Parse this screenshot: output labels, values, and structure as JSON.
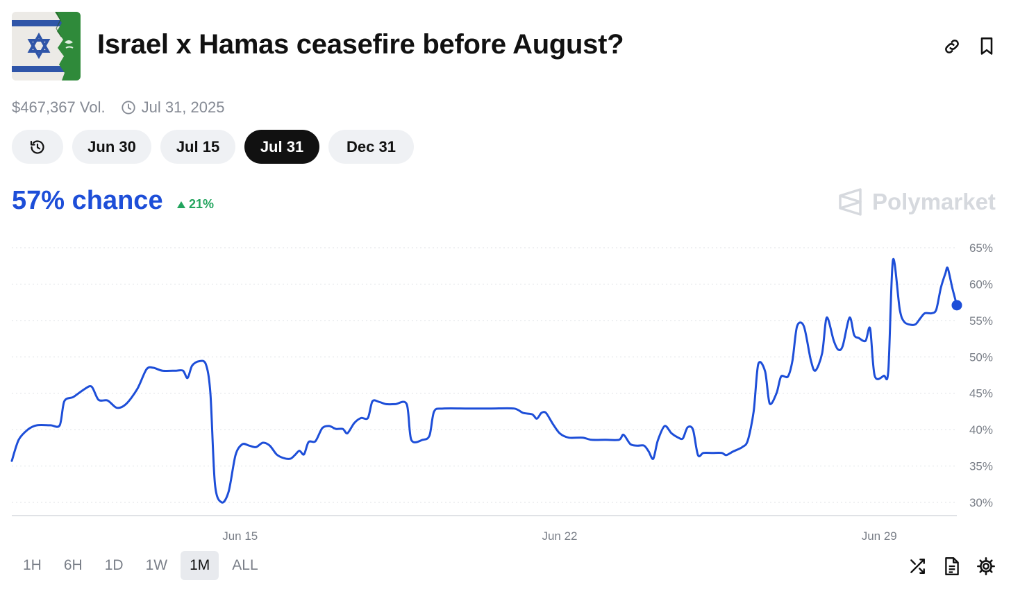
{
  "market": {
    "title": "Israel x Hamas ceasefire before August?",
    "volume": "$467,367 Vol.",
    "end_date": "Jul 31, 2025"
  },
  "header_icons": [
    "link-icon",
    "bookmark-icon"
  ],
  "date_tabs": {
    "history_icon": "history-icon",
    "items": [
      "Jun 30",
      "Jul 15",
      "Jul 31",
      "Dec 31"
    ],
    "active": "Jul 31"
  },
  "probability": {
    "label": "57% chance",
    "change": "21%",
    "change_direction": "up"
  },
  "brand": {
    "name": "Polymarket"
  },
  "colors": {
    "accent": "#1d4ed8",
    "positive": "#22a45d",
    "active_tab": "#111111"
  },
  "time_ranges": {
    "items": [
      "1H",
      "6H",
      "1D",
      "1W",
      "1M",
      "ALL"
    ],
    "active": "1M"
  },
  "footer_icons": [
    "shuffle-icon",
    "document-icon",
    "settings-icon"
  ],
  "chart_data": {
    "type": "line",
    "x_ticks": [
      "Jun 15",
      "Jun 22",
      "Jun 29"
    ],
    "y_ticks": [
      "30%",
      "35%",
      "40%",
      "45%",
      "50%",
      "55%",
      "60%",
      "65%"
    ],
    "ylim": [
      30,
      65
    ],
    "grid": true,
    "x_day_range": [
      10,
      30.7
    ],
    "series": [
      {
        "color": "#1d4ed8",
        "points": [
          [
            10.0,
            35.7
          ],
          [
            10.15,
            38.6
          ],
          [
            10.35,
            40
          ],
          [
            10.55,
            40.6
          ],
          [
            10.85,
            40.6
          ],
          [
            11.05,
            40.6
          ],
          [
            11.15,
            43.9
          ],
          [
            11.35,
            44.5
          ],
          [
            11.6,
            45.6
          ],
          [
            11.75,
            45.9
          ],
          [
            11.9,
            44.1
          ],
          [
            12.1,
            44.0
          ],
          [
            12.3,
            43.0
          ],
          [
            12.5,
            43.5
          ],
          [
            12.75,
            45.6
          ],
          [
            12.95,
            48.3
          ],
          [
            13.1,
            48.5
          ],
          [
            13.3,
            48.1
          ],
          [
            13.6,
            48.1
          ],
          [
            13.75,
            48.1
          ],
          [
            13.85,
            47.1
          ],
          [
            13.95,
            48.8
          ],
          [
            14.1,
            49.4
          ],
          [
            14.25,
            49.0
          ],
          [
            14.35,
            45
          ],
          [
            14.45,
            32.5
          ],
          [
            14.6,
            30.0
          ],
          [
            14.75,
            31.5
          ],
          [
            14.9,
            36.5
          ],
          [
            15.05,
            38.0
          ],
          [
            15.2,
            37.8
          ],
          [
            15.35,
            37.6
          ],
          [
            15.5,
            38.2
          ],
          [
            15.65,
            37.8
          ],
          [
            15.8,
            36.6
          ],
          [
            15.95,
            36.1
          ],
          [
            16.1,
            36.0
          ],
          [
            16.2,
            36.5
          ],
          [
            16.3,
            37.1
          ],
          [
            16.4,
            36.6
          ],
          [
            16.5,
            38.3
          ],
          [
            16.65,
            38.4
          ],
          [
            16.8,
            40.2
          ],
          [
            16.95,
            40.5
          ],
          [
            17.1,
            40.1
          ],
          [
            17.25,
            40.1
          ],
          [
            17.35,
            39.5
          ],
          [
            17.5,
            40.9
          ],
          [
            17.65,
            41.6
          ],
          [
            17.8,
            41.6
          ],
          [
            17.9,
            43.9
          ],
          [
            18.05,
            43.8
          ],
          [
            18.2,
            43.5
          ],
          [
            18.4,
            43.5
          ],
          [
            18.65,
            43.5
          ],
          [
            18.75,
            38.6
          ],
          [
            19.0,
            38.6
          ],
          [
            19.15,
            39.2
          ],
          [
            19.25,
            42.5
          ],
          [
            19.45,
            42.9
          ],
          [
            20.0,
            42.9
          ],
          [
            20.5,
            42.9
          ],
          [
            21.0,
            42.9
          ],
          [
            21.2,
            42.3
          ],
          [
            21.4,
            42.1
          ],
          [
            21.5,
            41.5
          ],
          [
            21.6,
            42.3
          ],
          [
            21.7,
            42.3
          ],
          [
            21.85,
            40.8
          ],
          [
            22.0,
            39.5
          ],
          [
            22.2,
            38.9
          ],
          [
            22.5,
            38.9
          ],
          [
            22.7,
            38.6
          ],
          [
            23.0,
            38.6
          ],
          [
            23.3,
            38.6
          ],
          [
            23.4,
            39.3
          ],
          [
            23.55,
            38.0
          ],
          [
            23.7,
            37.8
          ],
          [
            23.85,
            37.8
          ],
          [
            23.95,
            37.0
          ],
          [
            24.05,
            36.0
          ],
          [
            24.15,
            38.5
          ],
          [
            24.3,
            40.5
          ],
          [
            24.45,
            39.5
          ],
          [
            24.6,
            38.9
          ],
          [
            24.7,
            38.8
          ],
          [
            24.8,
            40.3
          ],
          [
            24.92,
            40.0
          ],
          [
            25.03,
            36.5
          ],
          [
            25.15,
            36.8
          ],
          [
            25.35,
            36.8
          ],
          [
            25.55,
            36.8
          ],
          [
            25.65,
            36.5
          ],
          [
            25.8,
            37.0
          ],
          [
            26.0,
            37.6
          ],
          [
            26.12,
            38.5
          ],
          [
            26.25,
            42.5
          ],
          [
            26.35,
            49.0
          ],
          [
            26.5,
            48.0
          ],
          [
            26.6,
            43.6
          ],
          [
            26.75,
            45.0
          ],
          [
            26.85,
            47.3
          ],
          [
            27.0,
            47.3
          ],
          [
            27.1,
            49.5
          ],
          [
            27.2,
            54.2
          ],
          [
            27.35,
            54.2
          ],
          [
            27.5,
            49.6
          ],
          [
            27.6,
            48.1
          ],
          [
            27.75,
            50.5
          ],
          [
            27.85,
            55.4
          ],
          [
            28.0,
            52.3
          ],
          [
            28.1,
            51.0
          ],
          [
            28.2,
            51.5
          ],
          [
            28.35,
            55.4
          ],
          [
            28.45,
            53.0
          ],
          [
            28.55,
            52.6
          ],
          [
            28.7,
            52.2
          ],
          [
            28.8,
            53.9
          ],
          [
            28.9,
            47.4
          ],
          [
            29.1,
            47.4
          ],
          [
            29.2,
            48.2
          ],
          [
            29.3,
            63.3
          ],
          [
            29.45,
            56.5
          ],
          [
            29.55,
            54.8
          ],
          [
            29.7,
            54.4
          ],
          [
            29.8,
            54.5
          ],
          [
            29.9,
            55.3
          ],
          [
            30.0,
            56.0
          ],
          [
            30.15,
            56.0
          ],
          [
            30.25,
            56.5
          ],
          [
            30.35,
            59.5
          ],
          [
            30.45,
            61.5
          ],
          [
            30.5,
            62.2
          ],
          [
            30.6,
            59.5
          ],
          [
            30.7,
            57.1
          ]
        ]
      }
    ]
  }
}
